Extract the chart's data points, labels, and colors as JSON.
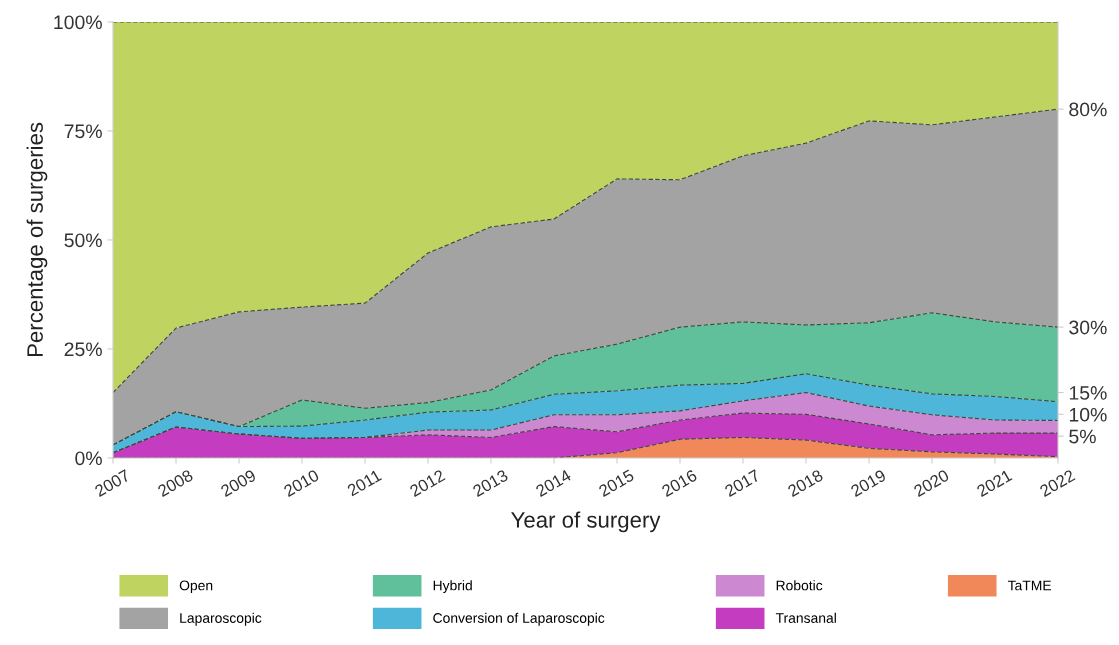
{
  "chart_data": {
    "type": "area",
    "stacked": true,
    "xlabel": "Year of surgery",
    "ylabel": "Percentage of surgeries",
    "categories": [
      "2007",
      "2008",
      "2009",
      "2010",
      "2011",
      "2012",
      "2013",
      "2014",
      "2015",
      "2016",
      "2017",
      "2018",
      "2019",
      "2020",
      "2021",
      "2022"
    ],
    "series": [
      {
        "name": "TaTME",
        "color": "#f0885a",
        "values": [
          0,
          0,
          0,
          0,
          0,
          0,
          0,
          0,
          1.2,
          4.3,
          4.7,
          4.1,
          2.2,
          1.4,
          0.9,
          0.3
        ]
      },
      {
        "name": "Transanal",
        "color": "#c43cc0",
        "values": [
          1.2,
          7.1,
          5.5,
          4.5,
          4.7,
          5.3,
          4.7,
          7.2,
          4.8,
          4.4,
          5.6,
          5.9,
          5.6,
          3.9,
          4.8,
          5.4
        ]
      },
      {
        "name": "Robotic",
        "color": "#cc88d0",
        "values": [
          0,
          0,
          0,
          0,
          0,
          1.1,
          1.7,
          2.7,
          3.9,
          2.1,
          2.8,
          5,
          4.1,
          4.6,
          3,
          2.9
        ]
      },
      {
        "name": "Conversion of Laparoscopic",
        "color": "#4db6d9",
        "values": [
          1.8,
          3.5,
          1.7,
          2.8,
          4,
          4.1,
          4.6,
          4.7,
          5.5,
          5.9,
          4,
          4.3,
          4.8,
          4.8,
          5.4,
          4.3
        ]
      },
      {
        "name": "Hybrid",
        "color": "#5fc09b",
        "values": [
          0,
          0,
          0,
          6,
          2.7,
          2.2,
          4.6,
          8.8,
          10.7,
          13.3,
          14.1,
          11.2,
          14.3,
          18.6,
          17.1,
          17.1
        ]
      },
      {
        "name": "Laparoscopic",
        "color": "#a3a3a3",
        "values": [
          12,
          19.2,
          26.3,
          21.3,
          24.1,
          34.3,
          37.4,
          31.4,
          37.9,
          33.8,
          38.1,
          41.7,
          46.3,
          43.1,
          47,
          50
        ]
      },
      {
        "name": "Open",
        "color": "#bfd460",
        "values": [
          85,
          70.2,
          66.5,
          65.4,
          64.5,
          53,
          47,
          45.2,
          36,
          36.2,
          30.7,
          27.8,
          22.7,
          23.6,
          21.8,
          20
        ]
      }
    ],
    "ylim": [
      0,
      100
    ],
    "yticks": [
      {
        "value": 0,
        "label": "0%"
      },
      {
        "value": 25,
        "label": "25%"
      },
      {
        "value": 50,
        "label": "50%"
      },
      {
        "value": 75,
        "label": "75%"
      },
      {
        "value": 100,
        "label": "100%"
      }
    ],
    "y2lim": [
      0,
      100
    ],
    "y2ticks": [
      {
        "value": 80,
        "label": "80%"
      },
      {
        "value": 30,
        "label": "30%"
      },
      {
        "value": 15,
        "label": "15%"
      },
      {
        "value": 10,
        "label": "10%"
      },
      {
        "value": 5,
        "label": "5%"
      }
    ],
    "legend": "bottom",
    "line_style": "dashed",
    "grid": false
  }
}
